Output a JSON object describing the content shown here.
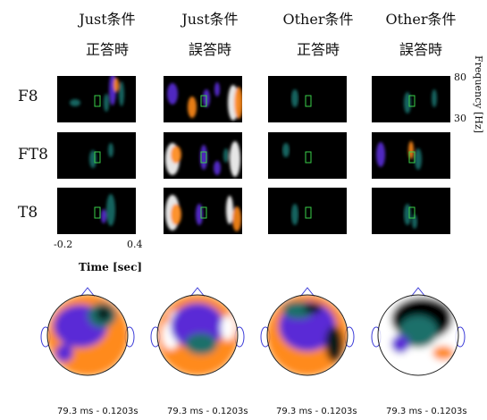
{
  "columns": [
    {
      "condition": "Just条件",
      "answer": "正答時"
    },
    {
      "condition": "Just条件",
      "answer": "誤答時"
    },
    {
      "condition": "Other条件",
      "answer": "正答時"
    },
    {
      "condition": "Other条件",
      "answer": "誤答時"
    }
  ],
  "rows": [
    "F8",
    "FT8",
    "T8"
  ],
  "x_axis": {
    "ticks": [
      "-0.2",
      "0.4"
    ],
    "title": "Time [sec]"
  },
  "freq_axis": {
    "ticks": [
      "80",
      "30"
    ],
    "title": "Frequency [Hz]"
  },
  "time_ranges": [
    "79.3 ms - 0.1203s",
    "79.3 ms - 0.1203s",
    "79.3 ms - 0.1203s",
    "79.3 ms - 0.1203s"
  ],
  "chart_data": {
    "type": "heatmap",
    "description_rows": [
      "F8",
      "FT8",
      "T8"
    ],
    "description_cols": [
      "Just条件 正答時",
      "Just条件 誤答時",
      "Other条件 正答時",
      "Other条件 誤答時"
    ],
    "x_range": [
      -0.2,
      0.4
    ],
    "y_range": [
      30,
      80
    ],
    "xlabel": "Time [sec]",
    "ylabel": "Frequency [Hz]"
  },
  "colors": {
    "background": "#000000",
    "low": "#1a6f6a",
    "mid": "#5a2bd6",
    "high": "#ff8a1a",
    "peak": "#ffffff",
    "marker": "#3ad04a"
  }
}
